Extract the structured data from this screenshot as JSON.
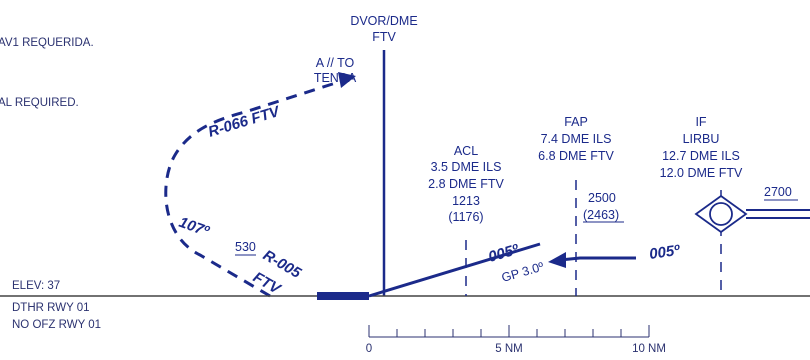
{
  "notes": {
    "line1": "AV1 REQUERIDA.",
    "line2": "AL REQUIRED."
  },
  "station": {
    "line1": "DVOR/DME",
    "line2": "FTV"
  },
  "turn_note": {
    "line1": "A // TO",
    "line2": "TENDA"
  },
  "track_labels": {
    "missed_radial": "R-066 FTV",
    "outbound_bearing": "107º",
    "inbound_radial_line1": "R-005",
    "inbound_radial_line2": "FTV",
    "final_course": "005º",
    "intermediate_course": "005º",
    "glidepath": "GP 3.0º"
  },
  "min_alt": {
    "value": "530"
  },
  "acl": {
    "name": "ACL",
    "line1": "3.5 DME ILS",
    "line2": "2.8 DME FTV",
    "line3": "1213",
    "line4": "(1176)"
  },
  "fap": {
    "name": "FAP",
    "line1": "7.4 DME ILS",
    "line2": "6.8 DME FTV",
    "alt": "2500",
    "height": "(2463)"
  },
  "iaf": {
    "name": "IF",
    "ident": "LIRBU",
    "line1": "12.7 DME ILS",
    "line2": "12.0 DME FTV",
    "alt": "2700"
  },
  "aerodrome": {
    "elev": "ELEV: 37",
    "dthr": "DTHR RWY 01",
    "ofz": "NO OFZ RWY 01"
  },
  "scale": {
    "label_0": "0",
    "label_5": "5 NM",
    "label_10": "10 NM"
  },
  "colors": {
    "primary": "#1b2a8a",
    "background": "#ffffff",
    "ground_line": "#444444"
  }
}
